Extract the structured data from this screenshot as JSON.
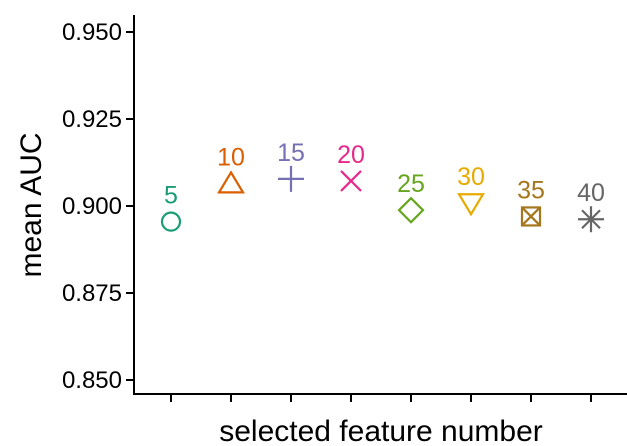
{
  "chart_data": {
    "type": "scatter",
    "title": "",
    "xlabel": "selected feature number",
    "ylabel": "mean AUC",
    "ylim": [
      0.85,
      0.955
    ],
    "yticks": [
      "0.850",
      "0.875",
      "0.900",
      "0.925",
      "0.950"
    ],
    "grid": false,
    "legend": "none",
    "points": [
      {
        "label": "5",
        "value": 0.8955,
        "marker": "circle",
        "color": "#1b9e77"
      },
      {
        "label": "10",
        "value": 0.9065,
        "marker": "triangle-up",
        "color": "#d95f02"
      },
      {
        "label": "15",
        "value": 0.9078,
        "marker": "plus",
        "color": "#7570b3"
      },
      {
        "label": "20",
        "value": 0.9072,
        "marker": "cross",
        "color": "#e7298a"
      },
      {
        "label": "25",
        "value": 0.8988,
        "marker": "diamond",
        "color": "#66a61e"
      },
      {
        "label": "30",
        "value": 0.9008,
        "marker": "triangle-down",
        "color": "#e6ab02"
      },
      {
        "label": "35",
        "value": 0.897,
        "marker": "square-x",
        "color": "#a6761d"
      },
      {
        "label": "40",
        "value": 0.8962,
        "marker": "asterisk",
        "color": "#666666"
      }
    ]
  }
}
